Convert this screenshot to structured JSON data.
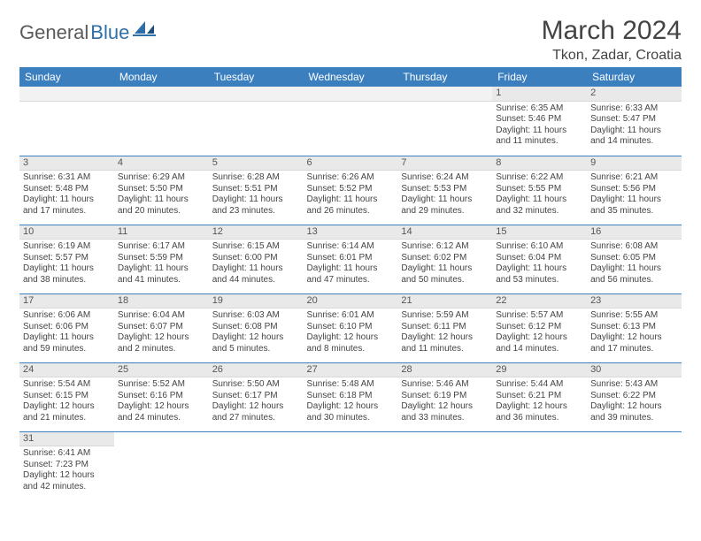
{
  "logo": {
    "part1": "General",
    "part2": "Blue"
  },
  "title": "March 2024",
  "location": "Tkon, Zadar, Croatia",
  "colors": {
    "header_bg": "#3b7fbf",
    "header_text": "#ffffff",
    "daynum_bg": "#e9e9e9",
    "row_border": "#3b7fbf",
    "logo_gray": "#5a5a5a",
    "logo_blue": "#2f6fa8"
  },
  "weekdays": [
    "Sunday",
    "Monday",
    "Tuesday",
    "Wednesday",
    "Thursday",
    "Friday",
    "Saturday"
  ],
  "weeks": [
    [
      {
        "blank": true
      },
      {
        "blank": true
      },
      {
        "blank": true
      },
      {
        "blank": true
      },
      {
        "blank": true
      },
      {
        "n": "1",
        "sr": "Sunrise: 6:35 AM",
        "ss": "Sunset: 5:46 PM",
        "dl": "Daylight: 11 hours and 11 minutes."
      },
      {
        "n": "2",
        "sr": "Sunrise: 6:33 AM",
        "ss": "Sunset: 5:47 PM",
        "dl": "Daylight: 11 hours and 14 minutes."
      }
    ],
    [
      {
        "n": "3",
        "sr": "Sunrise: 6:31 AM",
        "ss": "Sunset: 5:48 PM",
        "dl": "Daylight: 11 hours and 17 minutes."
      },
      {
        "n": "4",
        "sr": "Sunrise: 6:29 AM",
        "ss": "Sunset: 5:50 PM",
        "dl": "Daylight: 11 hours and 20 minutes."
      },
      {
        "n": "5",
        "sr": "Sunrise: 6:28 AM",
        "ss": "Sunset: 5:51 PM",
        "dl": "Daylight: 11 hours and 23 minutes."
      },
      {
        "n": "6",
        "sr": "Sunrise: 6:26 AM",
        "ss": "Sunset: 5:52 PM",
        "dl": "Daylight: 11 hours and 26 minutes."
      },
      {
        "n": "7",
        "sr": "Sunrise: 6:24 AM",
        "ss": "Sunset: 5:53 PM",
        "dl": "Daylight: 11 hours and 29 minutes."
      },
      {
        "n": "8",
        "sr": "Sunrise: 6:22 AM",
        "ss": "Sunset: 5:55 PM",
        "dl": "Daylight: 11 hours and 32 minutes."
      },
      {
        "n": "9",
        "sr": "Sunrise: 6:21 AM",
        "ss": "Sunset: 5:56 PM",
        "dl": "Daylight: 11 hours and 35 minutes."
      }
    ],
    [
      {
        "n": "10",
        "sr": "Sunrise: 6:19 AM",
        "ss": "Sunset: 5:57 PM",
        "dl": "Daylight: 11 hours and 38 minutes."
      },
      {
        "n": "11",
        "sr": "Sunrise: 6:17 AM",
        "ss": "Sunset: 5:59 PM",
        "dl": "Daylight: 11 hours and 41 minutes."
      },
      {
        "n": "12",
        "sr": "Sunrise: 6:15 AM",
        "ss": "Sunset: 6:00 PM",
        "dl": "Daylight: 11 hours and 44 minutes."
      },
      {
        "n": "13",
        "sr": "Sunrise: 6:14 AM",
        "ss": "Sunset: 6:01 PM",
        "dl": "Daylight: 11 hours and 47 minutes."
      },
      {
        "n": "14",
        "sr": "Sunrise: 6:12 AM",
        "ss": "Sunset: 6:02 PM",
        "dl": "Daylight: 11 hours and 50 minutes."
      },
      {
        "n": "15",
        "sr": "Sunrise: 6:10 AM",
        "ss": "Sunset: 6:04 PM",
        "dl": "Daylight: 11 hours and 53 minutes."
      },
      {
        "n": "16",
        "sr": "Sunrise: 6:08 AM",
        "ss": "Sunset: 6:05 PM",
        "dl": "Daylight: 11 hours and 56 minutes."
      }
    ],
    [
      {
        "n": "17",
        "sr": "Sunrise: 6:06 AM",
        "ss": "Sunset: 6:06 PM",
        "dl": "Daylight: 11 hours and 59 minutes."
      },
      {
        "n": "18",
        "sr": "Sunrise: 6:04 AM",
        "ss": "Sunset: 6:07 PM",
        "dl": "Daylight: 12 hours and 2 minutes."
      },
      {
        "n": "19",
        "sr": "Sunrise: 6:03 AM",
        "ss": "Sunset: 6:08 PM",
        "dl": "Daylight: 12 hours and 5 minutes."
      },
      {
        "n": "20",
        "sr": "Sunrise: 6:01 AM",
        "ss": "Sunset: 6:10 PM",
        "dl": "Daylight: 12 hours and 8 minutes."
      },
      {
        "n": "21",
        "sr": "Sunrise: 5:59 AM",
        "ss": "Sunset: 6:11 PM",
        "dl": "Daylight: 12 hours and 11 minutes."
      },
      {
        "n": "22",
        "sr": "Sunrise: 5:57 AM",
        "ss": "Sunset: 6:12 PM",
        "dl": "Daylight: 12 hours and 14 minutes."
      },
      {
        "n": "23",
        "sr": "Sunrise: 5:55 AM",
        "ss": "Sunset: 6:13 PM",
        "dl": "Daylight: 12 hours and 17 minutes."
      }
    ],
    [
      {
        "n": "24",
        "sr": "Sunrise: 5:54 AM",
        "ss": "Sunset: 6:15 PM",
        "dl": "Daylight: 12 hours and 21 minutes."
      },
      {
        "n": "25",
        "sr": "Sunrise: 5:52 AM",
        "ss": "Sunset: 6:16 PM",
        "dl": "Daylight: 12 hours and 24 minutes."
      },
      {
        "n": "26",
        "sr": "Sunrise: 5:50 AM",
        "ss": "Sunset: 6:17 PM",
        "dl": "Daylight: 12 hours and 27 minutes."
      },
      {
        "n": "27",
        "sr": "Sunrise: 5:48 AM",
        "ss": "Sunset: 6:18 PM",
        "dl": "Daylight: 12 hours and 30 minutes."
      },
      {
        "n": "28",
        "sr": "Sunrise: 5:46 AM",
        "ss": "Sunset: 6:19 PM",
        "dl": "Daylight: 12 hours and 33 minutes."
      },
      {
        "n": "29",
        "sr": "Sunrise: 5:44 AM",
        "ss": "Sunset: 6:21 PM",
        "dl": "Daylight: 12 hours and 36 minutes."
      },
      {
        "n": "30",
        "sr": "Sunrise: 5:43 AM",
        "ss": "Sunset: 6:22 PM",
        "dl": "Daylight: 12 hours and 39 minutes."
      }
    ],
    [
      {
        "n": "31",
        "sr": "Sunrise: 6:41 AM",
        "ss": "Sunset: 7:23 PM",
        "dl": "Daylight: 12 hours and 42 minutes."
      },
      {
        "blank": true
      },
      {
        "blank": true
      },
      {
        "blank": true
      },
      {
        "blank": true
      },
      {
        "blank": true
      },
      {
        "blank": true
      }
    ]
  ]
}
